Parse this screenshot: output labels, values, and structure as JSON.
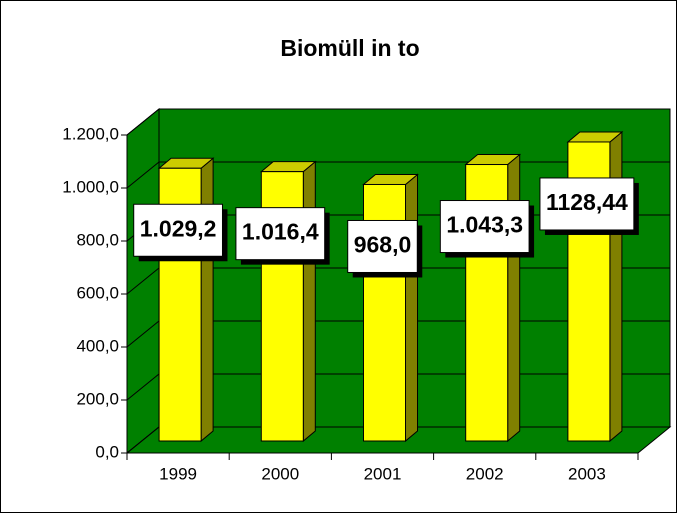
{
  "chart_data": {
    "type": "bar3d",
    "title": "Biomüll in to",
    "categories": [
      "1999",
      "2000",
      "2001",
      "2002",
      "2003"
    ],
    "values": [
      1029.2,
      1016.4,
      968.0,
      1043.3,
      1128.44
    ],
    "value_labels": [
      "1.029,2",
      "1.016,4",
      "968,0",
      "1.043,3",
      "1128,44"
    ],
    "color": "#ffff00",
    "wall_color": "#008000",
    "ylim": [
      0,
      1200
    ],
    "yticks": [
      {
        "value": 0,
        "label": "0,0"
      },
      {
        "value": 200,
        "label": "200,0"
      },
      {
        "value": 400,
        "label": "400,0"
      },
      {
        "value": 600,
        "label": "600,0"
      },
      {
        "value": 800,
        "label": "800,0"
      },
      {
        "value": 1000,
        "label": "1.000,0"
      },
      {
        "value": 1200,
        "label": "1.200,0"
      }
    ],
    "grid": true
  }
}
